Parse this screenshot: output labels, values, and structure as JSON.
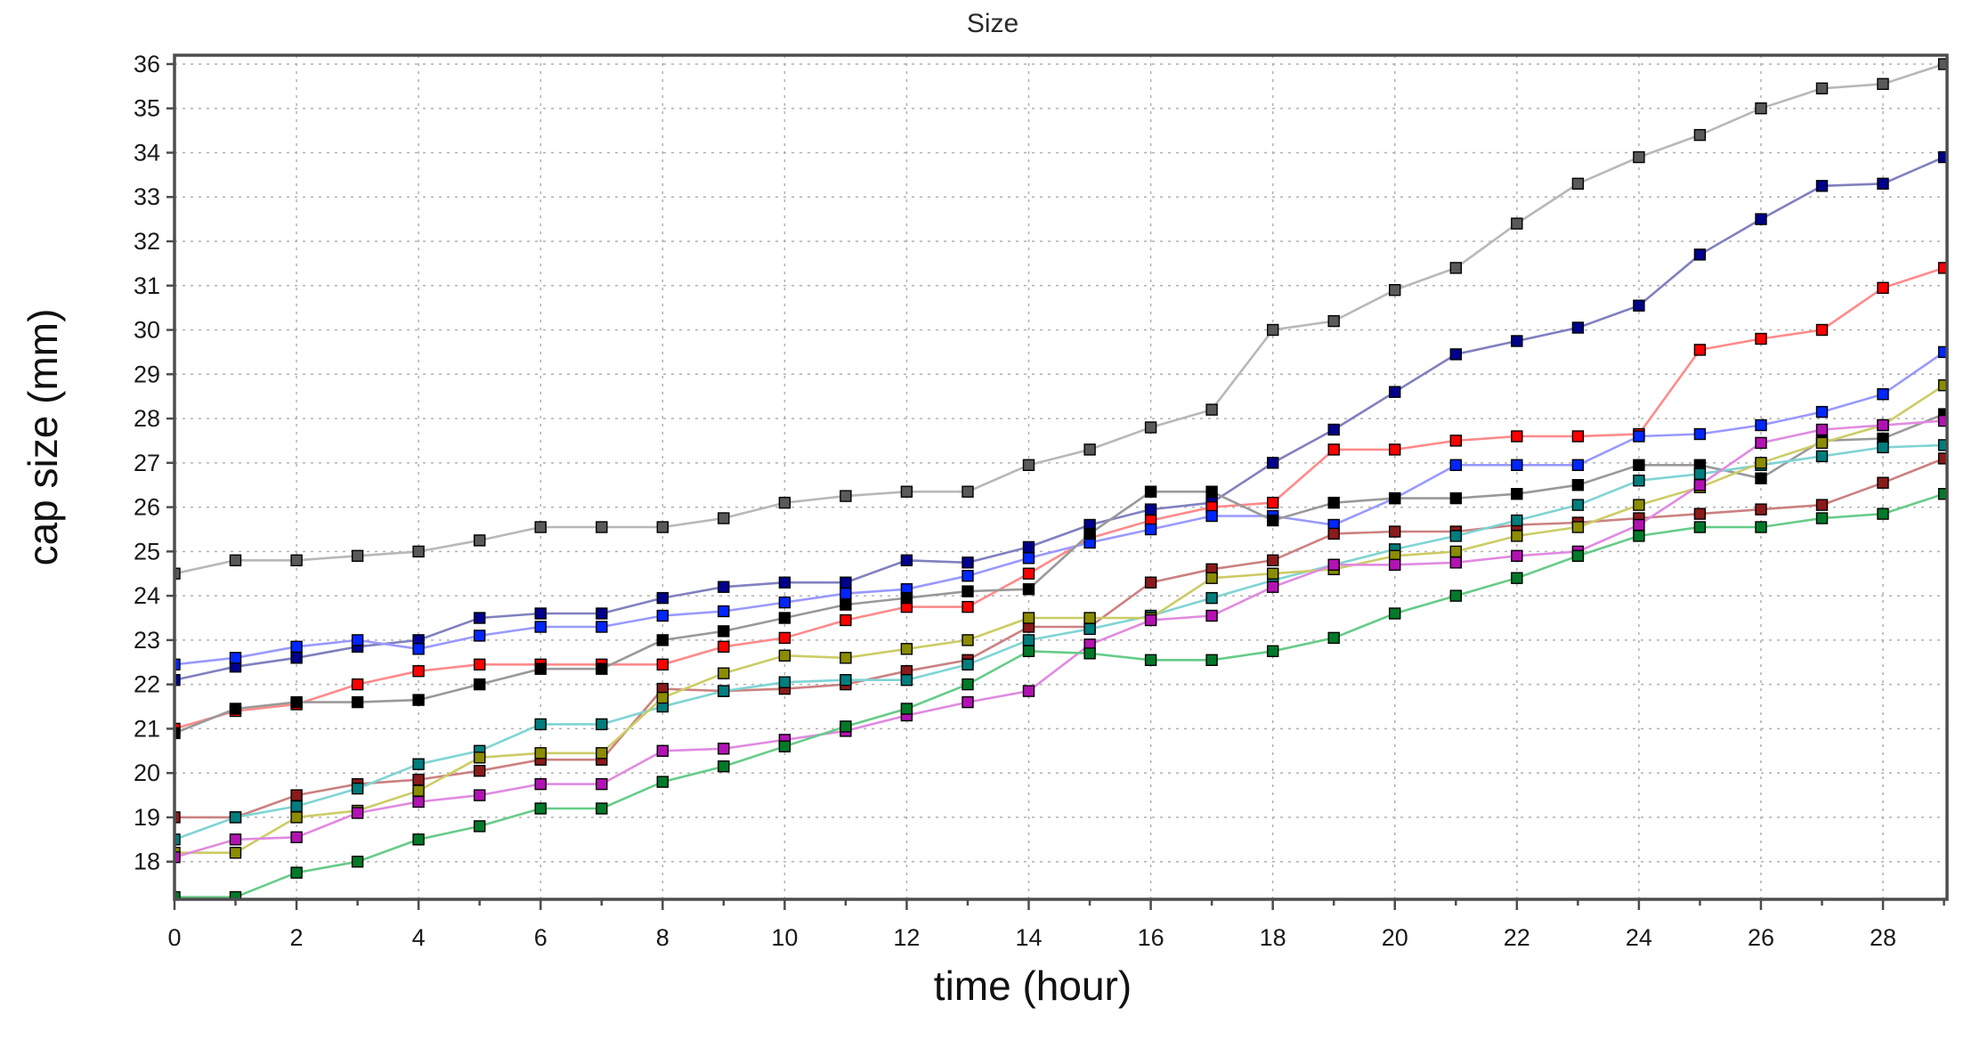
{
  "page": {
    "background": "#ffffff"
  },
  "chart_data": {
    "type": "line",
    "title": "Size",
    "xlabel": "time (hour)",
    "ylabel": "cap size (mm)",
    "grid": true,
    "legend": "none",
    "x": [
      0,
      1,
      2,
      3,
      4,
      5,
      6,
      7,
      8,
      9,
      10,
      11,
      12,
      13,
      14,
      15,
      16,
      17,
      18,
      19,
      20,
      21,
      22,
      23,
      24,
      25,
      26,
      27,
      28,
      29
    ],
    "xlim": [
      0,
      29.05
    ],
    "ylim": [
      17.15,
      36.2
    ],
    "x_major_ticks": [
      0,
      2,
      4,
      6,
      8,
      10,
      12,
      14,
      16,
      18,
      20,
      22,
      24,
      26,
      28
    ],
    "x_minor_step": 1,
    "y_ticks": [
      18,
      19,
      20,
      21,
      22,
      23,
      24,
      25,
      26,
      27,
      28,
      29,
      30,
      31,
      32,
      33,
      34,
      35,
      36
    ],
    "frame_color": "#4d4d4d",
    "grid_color": "#b0b0b0",
    "series": [
      {
        "name": "gray",
        "marker_color": "#5a5a5a",
        "line_color": "#b8b8b8",
        "values": [
          24.5,
          24.8,
          24.8,
          24.9,
          25.0,
          25.25,
          25.55,
          25.55,
          25.55,
          25.75,
          26.1,
          26.25,
          26.35,
          26.35,
          26.95,
          27.3,
          27.8,
          28.2,
          30.0,
          30.2,
          30.9,
          31.4,
          32.4,
          33.3,
          33.9,
          34.4,
          35.0,
          35.45,
          35.55,
          36.0
        ]
      },
      {
        "name": "navy",
        "marker_color": "#00008b",
        "line_color": "#8080c0",
        "values": [
          22.1,
          22.4,
          22.6,
          22.85,
          23.0,
          23.5,
          23.6,
          23.6,
          23.95,
          24.2,
          24.3,
          24.3,
          24.8,
          24.75,
          25.1,
          25.6,
          25.95,
          26.1,
          27.0,
          27.75,
          28.6,
          29.45,
          29.75,
          30.05,
          30.55,
          31.7,
          32.5,
          33.25,
          33.3,
          33.9
        ]
      },
      {
        "name": "red",
        "marker_color": "#ff0000",
        "line_color": "#ff8a8a",
        "values": [
          21.0,
          21.4,
          21.55,
          22.0,
          22.3,
          22.45,
          22.45,
          22.45,
          22.45,
          22.85,
          23.05,
          23.45,
          23.75,
          23.75,
          24.5,
          25.3,
          25.7,
          26.0,
          26.1,
          27.3,
          27.3,
          27.5,
          27.6,
          27.6,
          27.65,
          29.55,
          29.8,
          30.0,
          30.95,
          31.4
        ]
      },
      {
        "name": "blue",
        "marker_color": "#0026ff",
        "line_color": "#9999ff",
        "values": [
          22.45,
          22.6,
          22.85,
          23.0,
          22.8,
          23.1,
          23.3,
          23.3,
          23.55,
          23.65,
          23.85,
          24.05,
          24.15,
          24.45,
          24.85,
          25.2,
          25.5,
          25.8,
          25.8,
          25.6,
          26.2,
          26.95,
          26.95,
          26.95,
          27.6,
          27.65,
          27.85,
          28.15,
          28.55,
          29.5
        ]
      },
      {
        "name": "black",
        "marker_color": "#000000",
        "line_color": "#999999",
        "values": [
          20.9,
          21.45,
          21.6,
          21.6,
          21.65,
          22.0,
          22.35,
          22.35,
          23.0,
          23.2,
          23.5,
          23.8,
          23.95,
          24.1,
          24.15,
          25.4,
          26.35,
          26.35,
          25.7,
          26.1,
          26.2,
          26.2,
          26.3,
          26.5,
          26.95,
          26.95,
          26.65,
          27.5,
          27.55,
          28.1
        ]
      },
      {
        "name": "firebrick",
        "marker_color": "#8b1a1a",
        "line_color": "#cc8080",
        "values": [
          19.0,
          19.0,
          19.5,
          19.75,
          19.85,
          20.05,
          20.3,
          20.3,
          21.9,
          21.85,
          21.9,
          22.0,
          22.3,
          22.55,
          23.3,
          23.3,
          24.3,
          24.6,
          24.8,
          25.4,
          25.45,
          25.45,
          25.6,
          25.65,
          25.75,
          25.85,
          25.95,
          26.05,
          26.55,
          27.1
        ]
      },
      {
        "name": "teal",
        "marker_color": "#007d7d",
        "line_color": "#7fd4d4",
        "values": [
          18.5,
          19.0,
          19.25,
          19.65,
          20.2,
          20.5,
          21.1,
          21.1,
          21.5,
          21.85,
          22.05,
          22.1,
          22.1,
          22.45,
          23.0,
          23.25,
          23.55,
          23.95,
          24.35,
          24.7,
          25.05,
          25.35,
          25.7,
          26.05,
          26.6,
          26.75,
          26.95,
          27.15,
          27.35,
          27.4
        ]
      },
      {
        "name": "olive",
        "marker_color": "#8c8c00",
        "line_color": "#cccc66",
        "values": [
          18.2,
          18.2,
          19.0,
          19.15,
          19.6,
          20.35,
          20.45,
          20.45,
          21.7,
          22.25,
          22.65,
          22.6,
          22.8,
          23.0,
          23.5,
          23.5,
          23.5,
          24.4,
          24.5,
          24.6,
          24.9,
          25.0,
          25.35,
          25.55,
          26.05,
          26.45,
          27.0,
          27.45,
          27.85,
          28.75
        ]
      },
      {
        "name": "magenta",
        "marker_color": "#b312b3",
        "line_color": "#e08ae0",
        "values": [
          18.1,
          18.5,
          18.55,
          19.1,
          19.35,
          19.5,
          19.75,
          19.75,
          20.5,
          20.55,
          20.75,
          20.95,
          21.3,
          21.6,
          21.85,
          22.9,
          23.45,
          23.55,
          24.2,
          24.7,
          24.7,
          24.75,
          24.9,
          25.0,
          25.6,
          26.5,
          27.45,
          27.75,
          27.85,
          27.95
        ]
      },
      {
        "name": "green",
        "marker_color": "#007a29",
        "line_color": "#66cc88",
        "values": [
          17.2,
          17.2,
          17.75,
          18.0,
          18.5,
          18.8,
          19.2,
          19.2,
          19.8,
          20.15,
          20.6,
          21.05,
          21.45,
          22.0,
          22.75,
          22.7,
          22.55,
          22.55,
          22.75,
          23.05,
          23.6,
          24.0,
          24.4,
          24.9,
          25.35,
          25.55,
          25.55,
          25.75,
          25.85,
          26.3
        ]
      }
    ]
  }
}
